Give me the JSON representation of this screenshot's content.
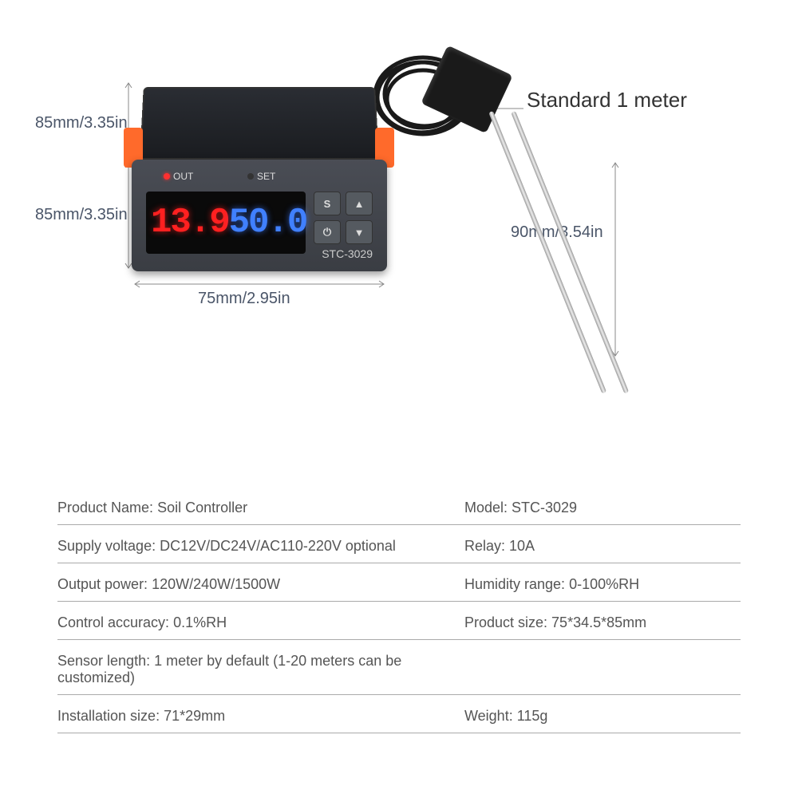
{
  "diagram": {
    "dimensions": {
      "depth": "85mm/3.35in",
      "height": "85mm/3.35in",
      "width": "75mm/2.95in",
      "probe": "90mm/3.54in",
      "cable": "Standard 1 meter"
    },
    "device": {
      "display_red": "13.9",
      "display_blue": "50.0",
      "led_out": "OUT",
      "led_set": "SET",
      "model": "STC-3029",
      "buttons": {
        "s": "S",
        "up": "▲",
        "power": "⏻",
        "down": "▼"
      }
    },
    "colors": {
      "body": "#3a3d43",
      "clip": "#ff6a2b",
      "screen_bg": "#0a0a0a",
      "red_led": "#ff2020",
      "blue_led": "#4080ff",
      "probe_rod": "#c0c0c0",
      "text": "#555",
      "divider": "#aaa",
      "arrow": "#888"
    }
  },
  "specs": {
    "rows": [
      {
        "l_label": "Product Name: ",
        "l_val": "Soil Controller",
        "r_label": "Model: ",
        "r_val": "STC-3029"
      },
      {
        "l_label": "Supply voltage: ",
        "l_val": "DC12V/DC24V/AC110-220V optional",
        "r_label": "Relay: ",
        "r_val": "10A"
      },
      {
        "l_label": "Output power: ",
        "l_val": "120W/240W/1500W",
        "r_label": "Humidity range: ",
        "r_val": "0-100%RH"
      },
      {
        "l_label": "Control accuracy: ",
        "l_val": "0.1%RH",
        "r_label": "Product size: ",
        "r_val": "75*34.5*85mm"
      },
      {
        "l_label": "Sensor length: ",
        "l_val": "1 meter by default (1-20 meters can be customized)",
        "r_label": "",
        "r_val": ""
      },
      {
        "l_label": "Installation size: ",
        "l_val": "71*29mm",
        "r_label": "Weight: ",
        "r_val": "115g"
      }
    ]
  }
}
